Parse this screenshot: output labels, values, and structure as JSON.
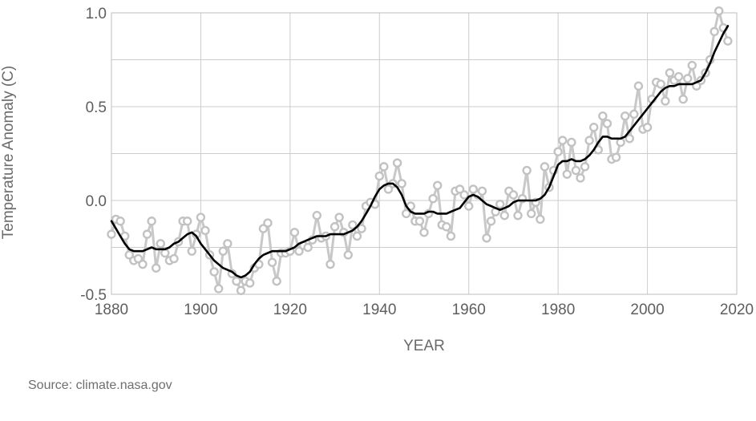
{
  "source_note": "Source: climate.nasa.gov",
  "colors": {
    "annual_line": "#c8c8c8",
    "annual_marker_stroke": "#c2c2c2",
    "smoothed_line": "#000000",
    "grid": "#cccccc",
    "plot_border": "#bdbdbd"
  },
  "chart_data": {
    "type": "line",
    "title": "",
    "xlabel": "YEAR",
    "ylabel": "Temperature Anomaly (C)",
    "xlim": [
      1880,
      2020
    ],
    "ylim": [
      -0.5,
      1.0
    ],
    "x_ticks": [
      1880,
      1900,
      1920,
      1940,
      1960,
      1980,
      2000,
      2020
    ],
    "y_ticks": [
      -0.5,
      0.0,
      0.5,
      1.0
    ],
    "y_tick_labels": [
      "-0.5",
      "0.0",
      "0.5",
      "1.0"
    ],
    "grid": true,
    "legend": "none",
    "x": [
      1880,
      1881,
      1882,
      1883,
      1884,
      1885,
      1886,
      1887,
      1888,
      1889,
      1890,
      1891,
      1892,
      1893,
      1894,
      1895,
      1896,
      1897,
      1898,
      1899,
      1900,
      1901,
      1902,
      1903,
      1904,
      1905,
      1906,
      1907,
      1908,
      1909,
      1910,
      1911,
      1912,
      1913,
      1914,
      1915,
      1916,
      1917,
      1918,
      1919,
      1920,
      1921,
      1922,
      1923,
      1924,
      1925,
      1926,
      1927,
      1928,
      1929,
      1930,
      1931,
      1932,
      1933,
      1934,
      1935,
      1936,
      1937,
      1938,
      1939,
      1940,
      1941,
      1942,
      1943,
      1944,
      1945,
      1946,
      1947,
      1948,
      1949,
      1950,
      1951,
      1952,
      1953,
      1954,
      1955,
      1956,
      1957,
      1958,
      1959,
      1960,
      1961,
      1962,
      1963,
      1964,
      1965,
      1966,
      1967,
      1968,
      1969,
      1970,
      1971,
      1972,
      1973,
      1974,
      1975,
      1976,
      1977,
      1978,
      1979,
      1980,
      1981,
      1982,
      1983,
      1984,
      1985,
      1986,
      1987,
      1988,
      1989,
      1990,
      1991,
      1992,
      1993,
      1994,
      1995,
      1996,
      1997,
      1998,
      1999,
      2000,
      2001,
      2002,
      2003,
      2004,
      2005,
      2006,
      2007,
      2008,
      2009,
      2010,
      2011,
      2012,
      2013,
      2014,
      2015,
      2016,
      2017,
      2018
    ],
    "series": [
      {
        "values": [
          -0.18,
          -0.1,
          -0.11,
          -0.19,
          -0.29,
          -0.32,
          -0.31,
          -0.34,
          -0.18,
          -0.11,
          -0.36,
          -0.23,
          -0.28,
          -0.32,
          -0.31,
          -0.22,
          -0.11,
          -0.11,
          -0.27,
          -0.18,
          -0.09,
          -0.16,
          -0.29,
          -0.38,
          -0.47,
          -0.27,
          -0.23,
          -0.39,
          -0.43,
          -0.48,
          -0.43,
          -0.44,
          -0.36,
          -0.34,
          -0.15,
          -0.12,
          -0.33,
          -0.43,
          -0.28,
          -0.28,
          -0.27,
          -0.17,
          -0.27,
          -0.24,
          -0.25,
          -0.21,
          -0.08,
          -0.2,
          -0.19,
          -0.34,
          -0.14,
          -0.09,
          -0.17,
          -0.29,
          -0.13,
          -0.19,
          -0.15,
          -0.03,
          -0.01,
          -0.02,
          0.13,
          0.18,
          0.06,
          0.09,
          0.2,
          0.09,
          -0.07,
          -0.03,
          -0.11,
          -0.11,
          -0.17,
          -0.07,
          0.01,
          0.08,
          -0.13,
          -0.14,
          -0.19,
          0.05,
          0.06,
          0.03,
          -0.03,
          0.06,
          0.03,
          0.05,
          -0.2,
          -0.11,
          -0.06,
          -0.02,
          -0.08,
          0.05,
          0.03,
          -0.08,
          0.01,
          0.16,
          -0.07,
          -0.01,
          -0.1,
          0.18,
          0.07,
          0.16,
          0.26,
          0.32,
          0.14,
          0.31,
          0.16,
          0.12,
          0.18,
          0.32,
          0.39,
          0.27,
          0.45,
          0.41,
          0.22,
          0.23,
          0.31,
          0.45,
          0.33,
          0.46,
          0.61,
          0.38,
          0.39,
          0.54,
          0.63,
          0.62,
          0.53,
          0.68,
          0.64,
          0.66,
          0.54,
          0.65,
          0.72,
          0.61,
          0.64,
          0.68,
          0.75,
          0.9,
          1.01,
          0.92,
          0.85
        ]
      },
      {
        "values": [
          -0.11,
          -0.15,
          -0.19,
          -0.23,
          -0.26,
          -0.27,
          -0.27,
          -0.27,
          -0.26,
          -0.25,
          -0.26,
          -0.26,
          -0.26,
          -0.25,
          -0.23,
          -0.22,
          -0.2,
          -0.18,
          -0.17,
          -0.19,
          -0.23,
          -0.26,
          -0.29,
          -0.32,
          -0.34,
          -0.36,
          -0.37,
          -0.38,
          -0.4,
          -0.41,
          -0.4,
          -0.38,
          -0.34,
          -0.31,
          -0.29,
          -0.28,
          -0.27,
          -0.27,
          -0.27,
          -0.27,
          -0.26,
          -0.25,
          -0.23,
          -0.22,
          -0.21,
          -0.2,
          -0.19,
          -0.19,
          -0.19,
          -0.18,
          -0.18,
          -0.18,
          -0.18,
          -0.17,
          -0.16,
          -0.14,
          -0.11,
          -0.07,
          -0.03,
          0.02,
          0.06,
          0.08,
          0.09,
          0.09,
          0.07,
          0.03,
          -0.03,
          -0.06,
          -0.07,
          -0.07,
          -0.07,
          -0.06,
          -0.06,
          -0.07,
          -0.07,
          -0.07,
          -0.06,
          -0.05,
          -0.04,
          -0.01,
          0.02,
          0.03,
          0.02,
          0.0,
          -0.02,
          -0.03,
          -0.04,
          -0.05,
          -0.04,
          -0.03,
          -0.01,
          0.0,
          0.0,
          0.0,
          0.0,
          0.0,
          0.01,
          0.03,
          0.07,
          0.13,
          0.19,
          0.21,
          0.21,
          0.22,
          0.21,
          0.21,
          0.22,
          0.24,
          0.27,
          0.31,
          0.34,
          0.34,
          0.33,
          0.33,
          0.33,
          0.34,
          0.37,
          0.4,
          0.43,
          0.46,
          0.49,
          0.52,
          0.55,
          0.58,
          0.6,
          0.61,
          0.61,
          0.62,
          0.62,
          0.62,
          0.62,
          0.63,
          0.64,
          0.68,
          0.73,
          0.79,
          0.84,
          0.89,
          0.93
        ]
      }
    ]
  }
}
